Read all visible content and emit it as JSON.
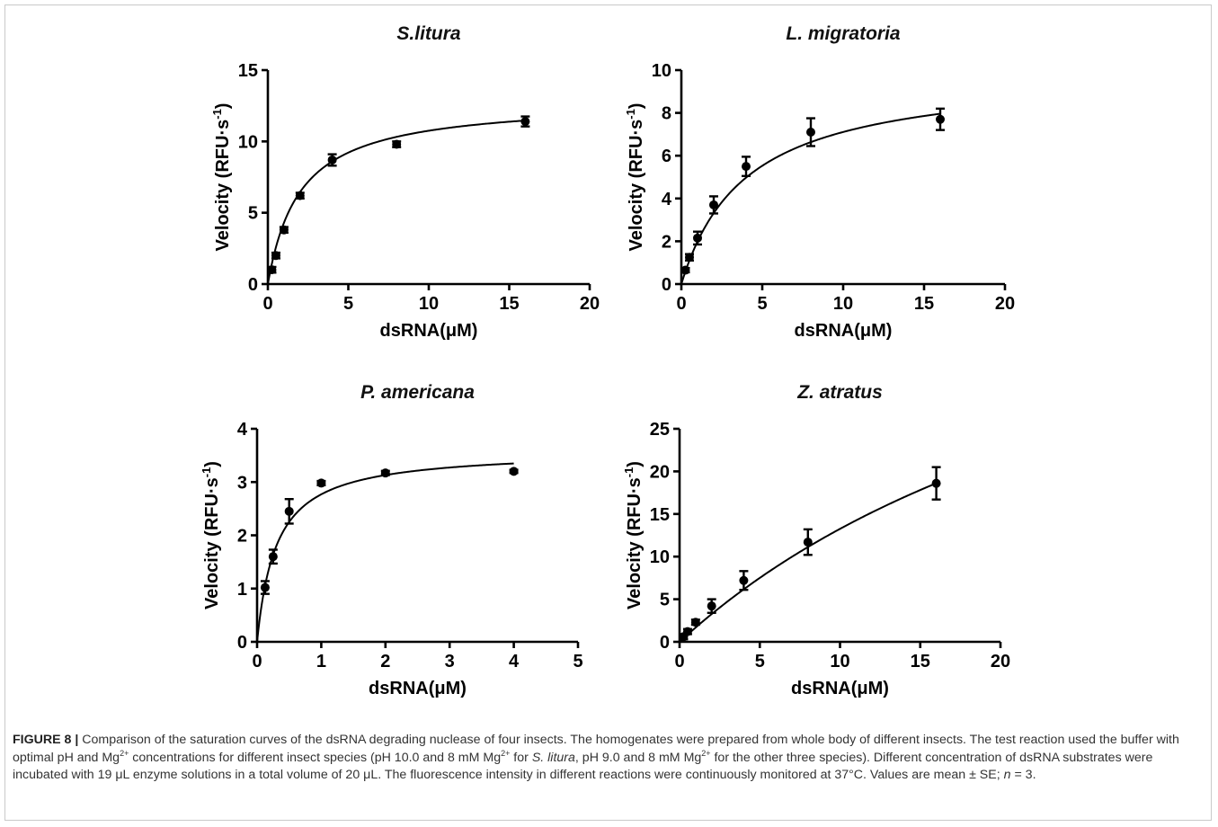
{
  "caption": {
    "figure_label": "FIGURE 8 |",
    "segments": [
      {
        "text": " Comparison of the saturation curves of the dsRNA degrading nuclease of four insects. The homogenates were prepared from whole body of different insects. The test reaction used the buffer with optimal pH and Mg"
      },
      {
        "text": "2+",
        "sup": true
      },
      {
        "text": " concentrations for different insect species (pH 10.0 and 8 mM Mg"
      },
      {
        "text": "2+",
        "sup": true
      },
      {
        "text": " for "
      },
      {
        "text": "S. litura",
        "italic": true
      },
      {
        "text": ", pH 9.0 and 8 mM Mg"
      },
      {
        "text": "2+",
        "sup": true
      },
      {
        "text": " for the other three species). Different concentration of dsRNA substrates were incubated with 19 μL enzyme solutions in a total volume of 20 μL. The fluorescence intensity in different reactions were continuously monitored at 37°C. Values are mean ± SE; "
      },
      {
        "text": "n",
        "italic": true
      },
      {
        "text": " = 3."
      }
    ]
  },
  "chart_data": [
    {
      "type": "scatter",
      "title": "S.litura",
      "xlabel": "dsRNA(μM)",
      "ylabel": "Velocity (RFU·s-1)",
      "ylabel_main": "Velocity (RFU·s",
      "ylabel_sup": "-1",
      "ylabel_tail": ")",
      "xlim": [
        0,
        20
      ],
      "ylim": [
        0,
        15
      ],
      "xticks": [
        0,
        5,
        10,
        15,
        20
      ],
      "yticks": [
        0,
        5,
        10,
        15
      ],
      "series": [
        {
          "x": [
            0.25,
            0.5,
            1,
            2,
            4,
            8,
            16
          ],
          "y": [
            1.0,
            2.0,
            3.8,
            6.2,
            8.7,
            9.8,
            11.4
          ],
          "error": [
            0.2,
            0.2,
            0.2,
            0.2,
            0.4,
            0.2,
            0.35
          ]
        }
      ],
      "fit": {
        "model": "michaelis-menten",
        "vmax": 12.9,
        "km": 2.0
      }
    },
    {
      "type": "scatter",
      "title": "L. migratoria",
      "xlabel": "dsRNA(μM)",
      "ylabel": "Velocity (RFU·s-1)",
      "ylabel_main": "Velocity (RFU·s",
      "ylabel_sup": "-1",
      "ylabel_tail": ")",
      "xlim": [
        0,
        20
      ],
      "ylim": [
        0,
        10
      ],
      "xticks": [
        0,
        5,
        10,
        15,
        20
      ],
      "yticks": [
        0,
        2,
        4,
        6,
        8,
        10
      ],
      "series": [
        {
          "x": [
            0.25,
            0.5,
            1,
            2,
            4,
            8,
            16
          ],
          "y": [
            0.65,
            1.25,
            2.15,
            3.7,
            5.5,
            7.1,
            7.7
          ],
          "error": [
            0.1,
            0.15,
            0.3,
            0.4,
            0.45,
            0.65,
            0.5
          ]
        }
      ],
      "fit": {
        "model": "michaelis-menten",
        "vmax": 9.95,
        "km": 4.0
      }
    },
    {
      "type": "scatter",
      "title": "P. americana",
      "xlabel": "dsRNA(μM)",
      "ylabel": "Velocity (RFU·s-1)",
      "ylabel_main": "Velocity (RFU·s",
      "ylabel_sup": "-1",
      "ylabel_tail": ")",
      "xlim": [
        0,
        5
      ],
      "ylim": [
        0,
        4
      ],
      "xticks": [
        0,
        1,
        2,
        3,
        4,
        5
      ],
      "yticks": [
        0,
        1,
        2,
        3,
        4
      ],
      "series": [
        {
          "x": [
            0.125,
            0.25,
            0.5,
            1,
            2,
            4
          ],
          "y": [
            1.02,
            1.6,
            2.45,
            2.98,
            3.17,
            3.2
          ],
          "error": [
            0.12,
            0.13,
            0.23,
            0.04,
            0.04,
            0.03
          ]
        }
      ],
      "fit": {
        "model": "michaelis-menten",
        "vmax": 3.6,
        "km": 0.3
      }
    },
    {
      "type": "scatter",
      "title": "Z. atratus",
      "xlabel": "dsRNA(μM)",
      "ylabel": "Velocity (RFU·s-1)",
      "ylabel_main": "Velocity (RFU·s",
      "ylabel_sup": "-1",
      "ylabel_tail": ")",
      "xlim": [
        0,
        20
      ],
      "ylim": [
        0,
        25
      ],
      "xticks": [
        0,
        5,
        10,
        15,
        20
      ],
      "yticks": [
        0,
        5,
        10,
        15,
        20,
        25
      ],
      "series": [
        {
          "x": [
            0.25,
            0.5,
            1,
            2,
            4,
            8,
            16
          ],
          "y": [
            0.6,
            1.2,
            2.3,
            4.2,
            7.2,
            11.7,
            18.6
          ],
          "error": [
            0.3,
            0.3,
            0.3,
            0.8,
            1.1,
            1.5,
            1.9
          ]
        }
      ],
      "fit": {
        "model": "michaelis-menten",
        "vmax": 57,
        "km": 33
      }
    }
  ]
}
